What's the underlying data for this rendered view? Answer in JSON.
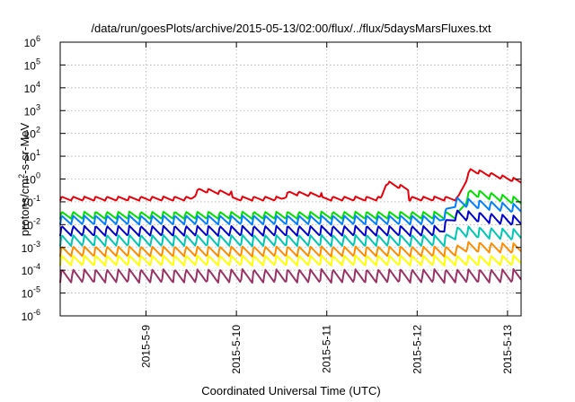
{
  "chart_data": {
    "type": "line",
    "title": "/data/run/goesPlots/archive/2015-05-13/02:00/flux/../flux/5daysMarsFluxes.txt",
    "xlabel": "Coordinated Universal Time (UTC)",
    "ylabel_main": "protons/cm",
    "ylabel_sup": "2",
    "ylabel_rest": "-s-sr-MeV",
    "y_scale": "log",
    "ylim": [
      1e-06,
      1000000.0
    ],
    "grid": true,
    "xlim_days": [
      -0.95,
      4.15
    ],
    "y_ticks": [
      {
        "base": "10",
        "exp": "-6",
        "value": -6
      },
      {
        "base": "10",
        "exp": "-5",
        "value": -5
      },
      {
        "base": "10",
        "exp": "-4",
        "value": -4
      },
      {
        "base": "10",
        "exp": "-3",
        "value": -3
      },
      {
        "base": "10",
        "exp": "-2",
        "value": -2
      },
      {
        "base": "10",
        "exp": "-1",
        "value": -1
      },
      {
        "base": "10",
        "exp": "0",
        "value": 0
      },
      {
        "base": "10",
        "exp": "1",
        "value": 1
      },
      {
        "base": "10",
        "exp": "2",
        "value": 2
      },
      {
        "base": "10",
        "exp": "3",
        "value": 3
      },
      {
        "base": "10",
        "exp": "4",
        "value": 4
      },
      {
        "base": "10",
        "exp": "5",
        "value": 5
      },
      {
        "base": "10",
        "exp": "6",
        "value": 6
      }
    ],
    "x_ticks": [
      {
        "label": "2015-5-9",
        "day": 0
      },
      {
        "label": "2015-5-10",
        "day": 1
      },
      {
        "label": "2015-5-11",
        "day": 2
      },
      {
        "label": "2015-5-12",
        "day": 3
      },
      {
        "label": "2015-5-13",
        "day": 4
      }
    ],
    "series": [
      {
        "color": "#e8000b",
        "base": -0.95,
        "amp": 0.18,
        "enh": [
          [
            0.5,
            0.95,
            0.38
          ],
          [
            1.5,
            1.95,
            0.25
          ],
          [
            2.6,
            2.9,
            0.7
          ],
          [
            3.45,
            4.15,
            1.25
          ]
        ]
      },
      {
        "color": "#00e000",
        "base": -1.75,
        "amp": 0.32,
        "enh": [
          [
            3.45,
            4.15,
            1.0
          ]
        ]
      },
      {
        "color": "#0080ff",
        "base": -2.0,
        "amp": 0.4,
        "enh": [
          [
            3.25,
            4.15,
            0.8
          ]
        ]
      },
      {
        "color": "#0000d0",
        "base": -2.5,
        "amp": 0.45,
        "enh": [
          [
            3.25,
            4.15,
            0.7
          ]
        ]
      },
      {
        "color": "#00c8b4",
        "base": -2.95,
        "amp": 0.5,
        "enh": [
          [
            3.3,
            4.15,
            0.4
          ]
        ]
      },
      {
        "color": "#ff8c00",
        "base": -3.4,
        "amp": 0.45,
        "enh": [
          [
            3.4,
            4.15,
            0.2
          ]
        ]
      },
      {
        "color": "#ffff00",
        "base": -3.8,
        "amp": 0.45,
        "enh": []
      },
      {
        "color": "#993366",
        "base": -4.55,
        "amp": 0.6,
        "enh": []
      }
    ]
  }
}
